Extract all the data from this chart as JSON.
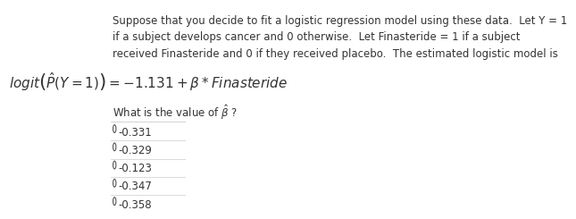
{
  "background_color": "#ffffff",
  "text_color": "#333333",
  "paragraph": "Suppose that you decide to fit a logistic regression model using these data.  Let Y = 1\nif a subject develops cancer and 0 otherwise.  Let Finasteride = 1 if a subject\nreceived Finasteride and 0 if they received placebo.  The estimated logistic model is",
  "formula": "$\\mathit{logit}\\left(\\hat{P}(Y=1)\\right) = -1.131 + \\beta * \\mathit{Finasteride}$",
  "question": "What is the value of $\\hat{\\beta}$ ?",
  "options": [
    "-0.331",
    "-0.329",
    "-0.123",
    "-0.347",
    "-0.358"
  ],
  "body_fontsize": 8.5,
  "formula_fontsize": 11,
  "question_fontsize": 8.5,
  "option_fontsize": 8.5,
  "divider_color": "#cccccc"
}
